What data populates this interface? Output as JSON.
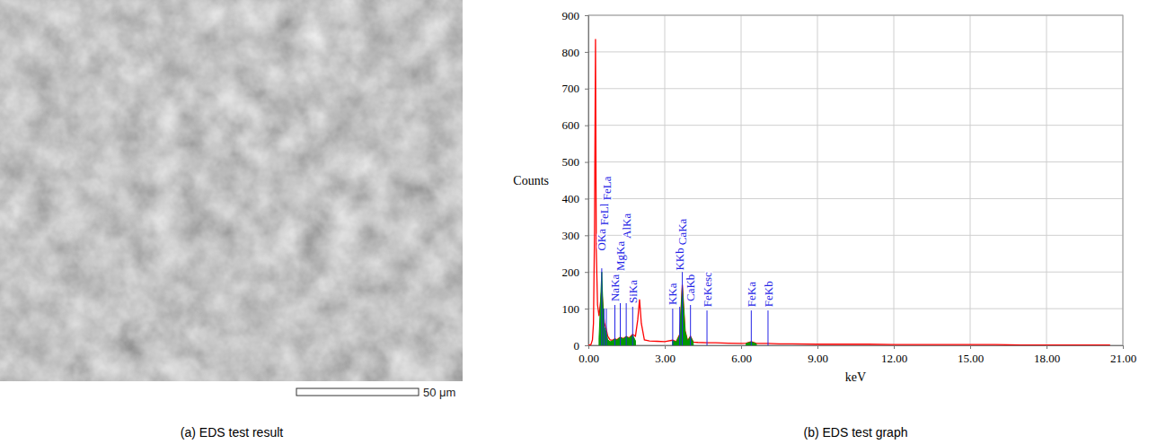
{
  "image_panel": {
    "caption": "(a) EDS test result",
    "scale_bar_label": "50 μm"
  },
  "chart_data": {
    "type": "line",
    "title": "(b) EDS test graph",
    "x_label": "keV",
    "y_label": "Counts",
    "x": [
      0,
      0.1,
      0.16,
      0.2,
      0.24,
      0.28,
      0.31,
      0.36,
      0.42,
      0.48,
      0.525,
      0.57,
      0.63,
      0.7,
      0.76,
      0.85,
      0.95,
      1.04,
      1.12,
      1.25,
      1.37,
      1.49,
      1.6,
      1.74,
      1.85,
      1.94,
      2.01,
      2.08,
      2.2,
      2.4,
      2.7,
      3,
      3.31,
      3.45,
      3.59,
      3.69,
      3.8,
      3.9,
      4.01,
      4.12,
      4.3,
      4.66,
      5,
      5.5,
      6,
      6.2,
      6.4,
      6.6,
      7.06,
      7.5,
      8,
      9,
      10,
      11,
      12,
      13,
      14,
      15,
      16,
      17,
      18,
      19,
      20,
      20.5
    ],
    "series": [
      {
        "type": "line",
        "color": "#ff0000",
        "values": [
          0,
          2,
          15,
          60,
          300,
          835,
          260,
          110,
          80,
          120,
          150,
          110,
          60,
          45,
          25,
          15,
          14,
          18,
          15,
          22,
          18,
          24,
          20,
          30,
          25,
          70,
          125,
          60,
          15,
          12,
          11,
          10,
          14,
          10,
          30,
          165,
          40,
          12,
          25,
          9,
          8,
          7,
          7,
          6,
          5,
          6,
          10,
          5,
          5,
          4,
          4,
          3,
          3,
          3,
          2,
          2,
          2,
          2,
          2,
          1,
          1,
          1,
          1,
          1
        ]
      },
      {
        "type": "area",
        "color": "#009900",
        "values": [
          null,
          null,
          null,
          null,
          null,
          null,
          null,
          null,
          20,
          120,
          200,
          110,
          50,
          35,
          15,
          10,
          12,
          18,
          14,
          22,
          17,
          24,
          19,
          28,
          12,
          null,
          null,
          null,
          null,
          null,
          null,
          null,
          12,
          9,
          28,
          160,
          38,
          11,
          24,
          8,
          null,
          null,
          null,
          null,
          null,
          5,
          9,
          4,
          null,
          null,
          null,
          null,
          null,
          null,
          null,
          null,
          null,
          null,
          null,
          null,
          null,
          null,
          null,
          null
        ]
      }
    ],
    "annotations": [
      {
        "text": "OKa",
        "x": 0.525,
        "y": 210
      },
      {
        "text": "FeLl",
        "x": 0.615,
        "y": 100
      },
      {
        "text": "FeLa",
        "x": 0.705,
        "y": 100
      },
      {
        "text": "NaKa",
        "x": 1.041,
        "y": 110
      },
      {
        "text": "MgKa",
        "x": 1.254,
        "y": 115
      },
      {
        "text": "AlKa",
        "x": 1.487,
        "y": 115
      },
      {
        "text": "SiKa",
        "x": 1.74,
        "y": 105
      },
      {
        "text": "KKa",
        "x": 3.313,
        "y": 100
      },
      {
        "text": "KKb",
        "x": 3.59,
        "y": 105
      },
      {
        "text": "CaKa",
        "x": 3.691,
        "y": 200
      },
      {
        "text": "CaKb",
        "x": 4.012,
        "y": 110
      },
      {
        "text": "FeKesc",
        "x": 4.66,
        "y": 95
      },
      {
        "text": "FeKa",
        "x": 6.4,
        "y": 95
      },
      {
        "text": "FeKb",
        "x": 7.058,
        "y": 95
      }
    ],
    "xlim": [
      0,
      21
    ],
    "xticks": [
      {
        "value": 0,
        "label": "0.00"
      },
      {
        "value": 3,
        "label": "3.00"
      },
      {
        "value": 6,
        "label": "6.00"
      },
      {
        "value": 9,
        "label": "9.00"
      },
      {
        "value": 12,
        "label": "12.00"
      },
      {
        "value": 15,
        "label": "15.00"
      },
      {
        "value": 18,
        "label": "18.00"
      },
      {
        "value": 21,
        "label": "21.00"
      }
    ],
    "ylim": [
      0,
      900
    ],
    "yticks": [
      0,
      100,
      200,
      300,
      400,
      500,
      600,
      700,
      800,
      900
    ],
    "grid": true
  }
}
